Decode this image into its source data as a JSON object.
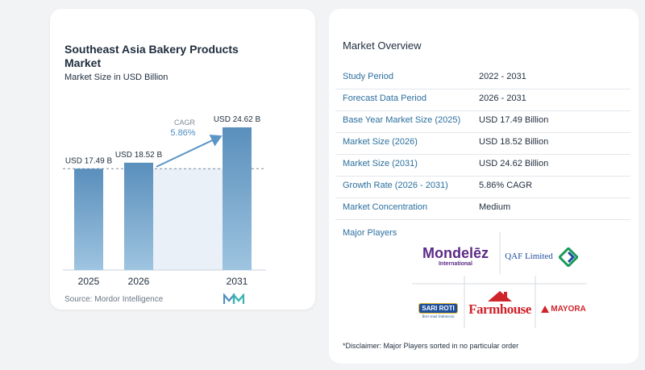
{
  "chart": {
    "title": "Southeast Asia Bakery Products Market",
    "subtitle": "Market Size in USD Billion",
    "source": "Source: Mordor Intelligence",
    "cagr_label": "CAGR",
    "cagr_value": "5.86%"
  },
  "chart_data": {
    "type": "bar",
    "title": "Southeast Asia Bakery Products Market",
    "subtitle": "Market Size in USD Billion",
    "categories": [
      "2025",
      "2026",
      "2031"
    ],
    "values": [
      17.49,
      18.52,
      24.62
    ],
    "data_labels": [
      "USD 17.49 B",
      "USD 18.52 B",
      "USD 24.62 B"
    ],
    "ylim": [
      0,
      24.62
    ],
    "grid": false,
    "colors": {
      "bar_top": "#5a8fbc",
      "bar_bottom": "#9ec4e0",
      "band": "#e9f0f7",
      "arrow": "#5b95c6"
    }
  },
  "overview": {
    "title": "Market Overview",
    "rows": [
      {
        "label": "Study Period",
        "value": "2022 - 2031"
      },
      {
        "label": "Forecast Data Period",
        "value": "2026 - 2031"
      },
      {
        "label": "Base Year Market Size (2025)",
        "value": "USD 17.49 Billion"
      },
      {
        "label": "Market Size (2026)",
        "value": "USD 18.52 Billion"
      },
      {
        "label": "Market Size (2031)",
        "value": "USD 24.62 Billion"
      },
      {
        "label": "Growth Rate (2026 - 2031)",
        "value": "5.86% CAGR"
      },
      {
        "label": "Market Concentration",
        "value": "Medium"
      }
    ]
  },
  "players": {
    "title": "Major Players",
    "logos": [
      {
        "name": "Mondelēz",
        "sub": "International"
      },
      {
        "name": "QAF Limited"
      },
      {
        "name": "SARI ROTI",
        "sub": "Roti enak Indonesia"
      },
      {
        "name": "Farmhouse"
      },
      {
        "name": "MAYORA"
      }
    ]
  },
  "disclaimer": "*Disclaimer: Major Players sorted in no particular order"
}
